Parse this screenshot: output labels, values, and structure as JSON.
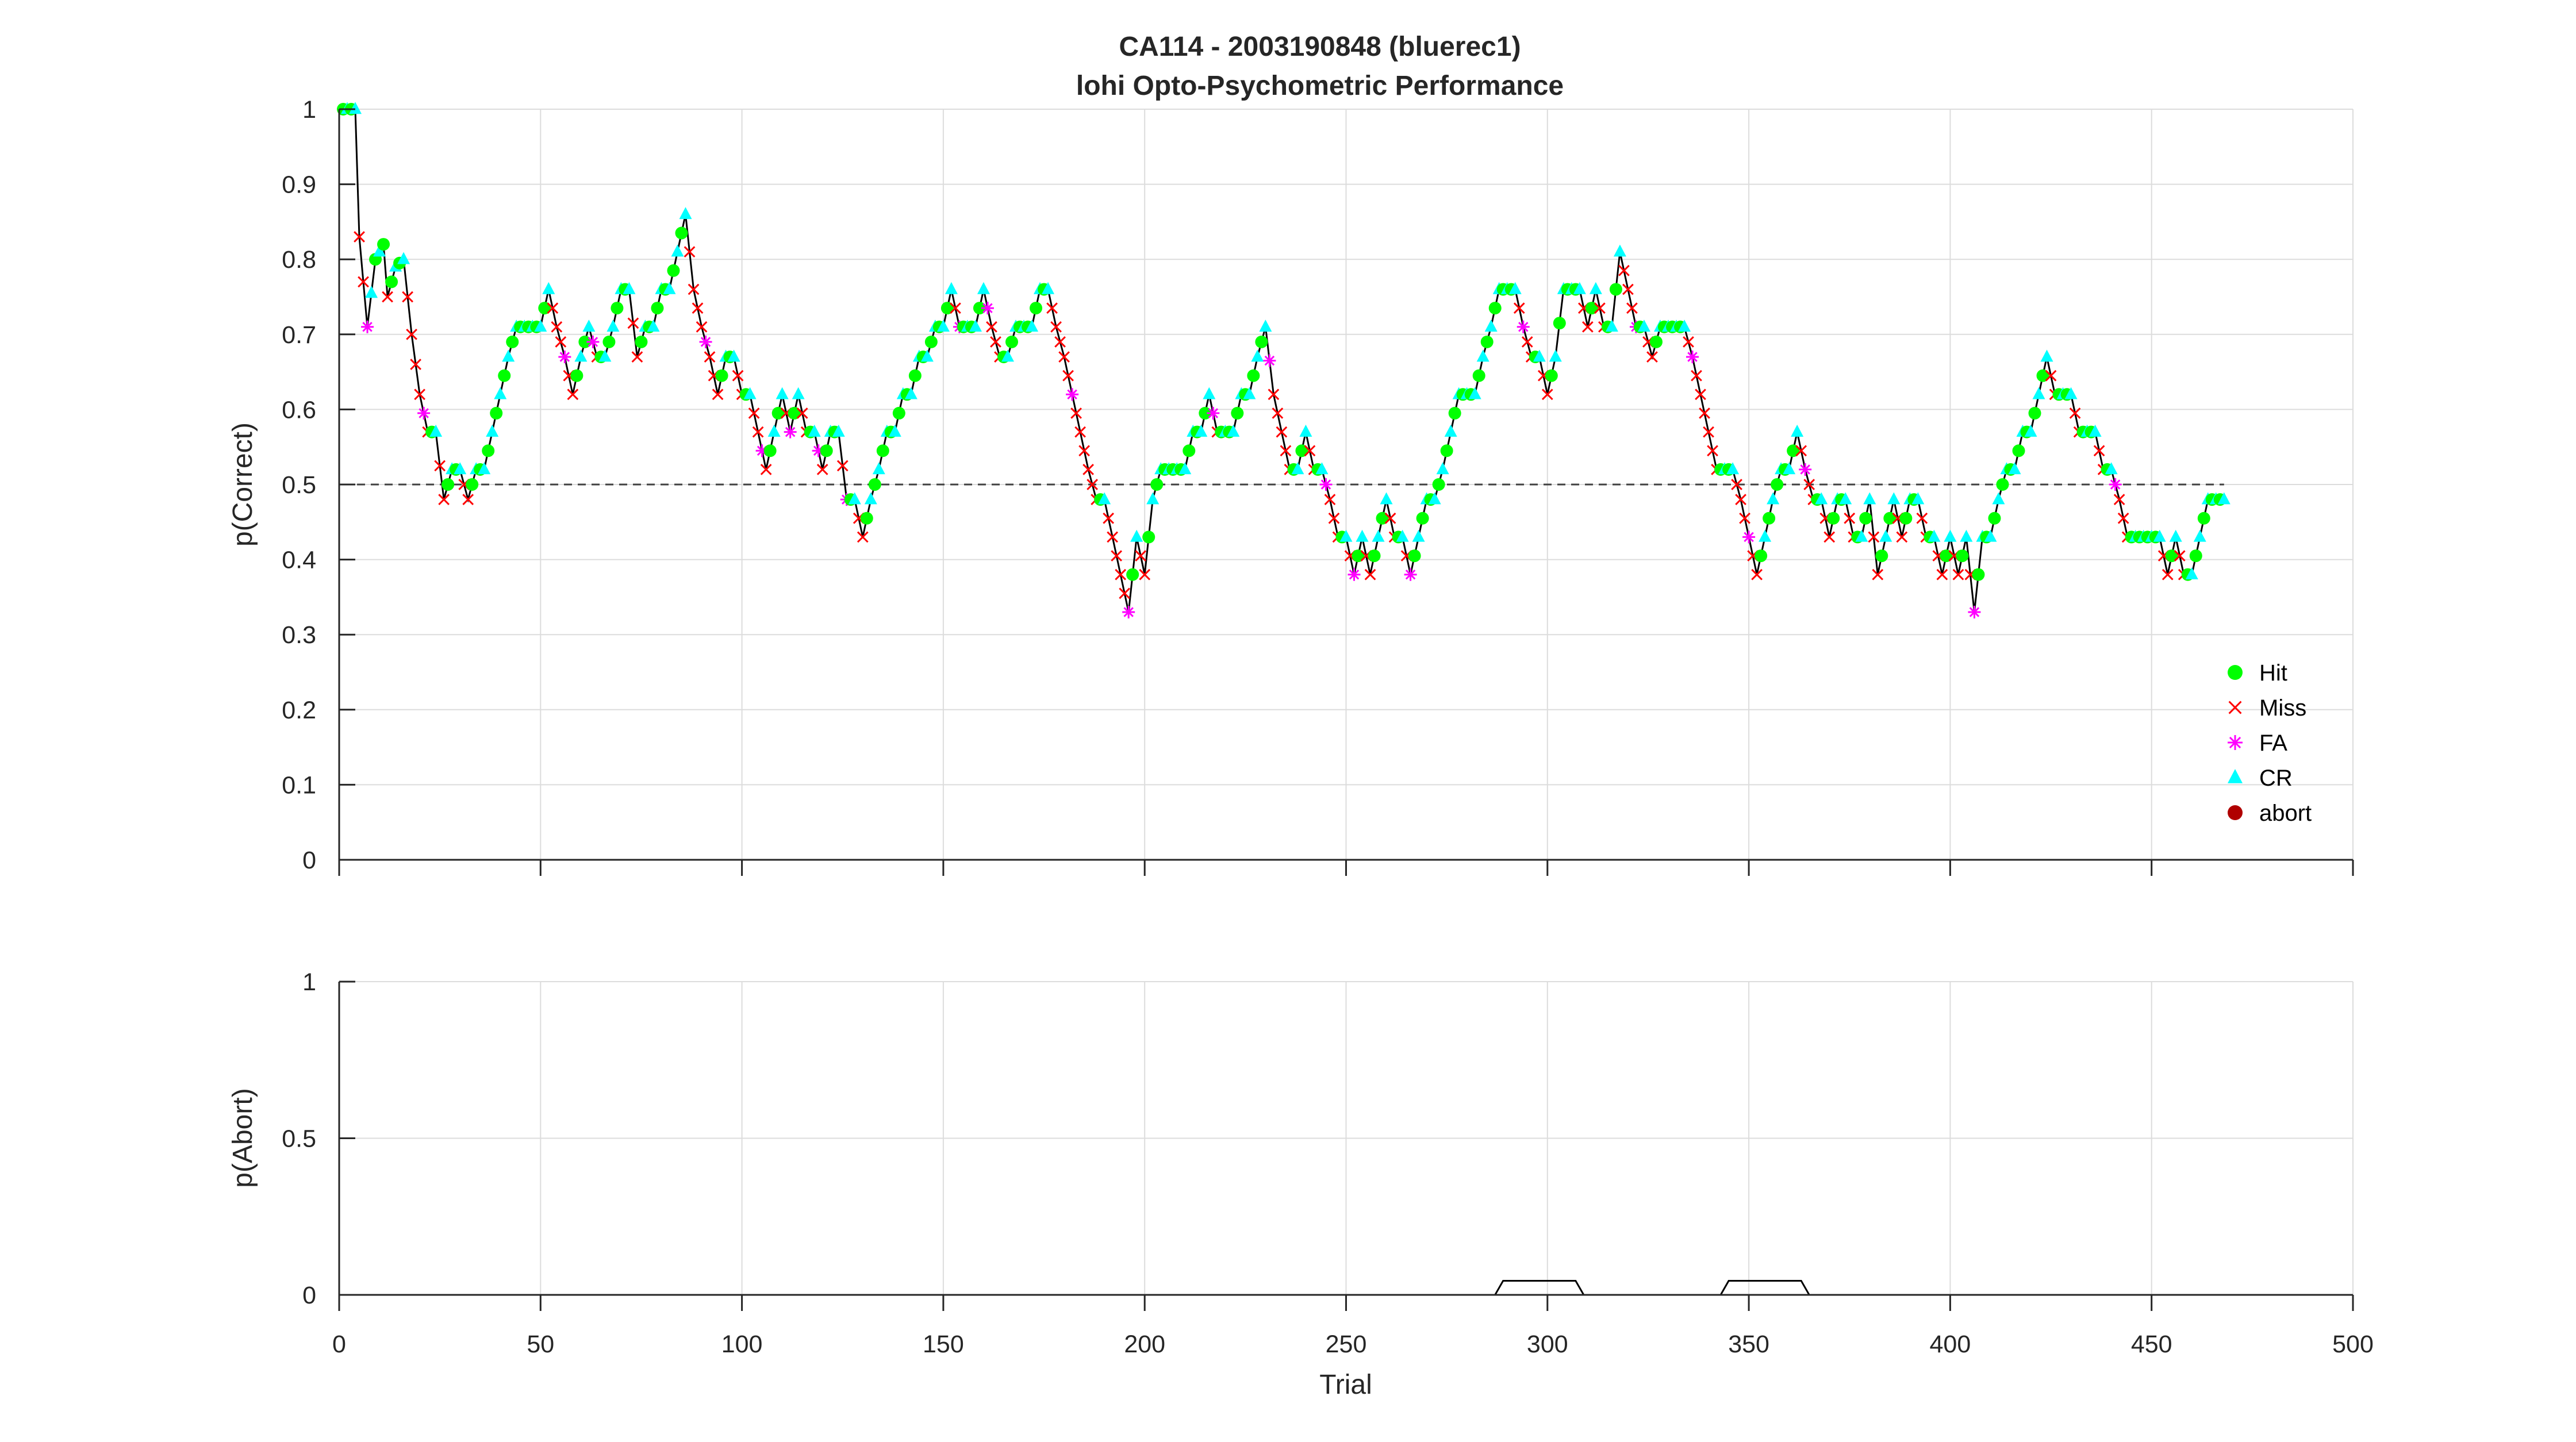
{
  "figure": {
    "title_line1": "CA114 - 2003190848 (bluerec1)",
    "title_line2": "lohi Opto-Psychometric Performance"
  },
  "colors": {
    "hit": "#00ff00",
    "miss": "#ff0000",
    "fa": "#ff00ff",
    "cr": "#00ffff",
    "abort": "#b00000",
    "line": "#000000",
    "grid": "#dcdcdc"
  },
  "chart_data": [
    {
      "type": "line",
      "ylabel": "p(Correct)",
      "xlim": [
        0,
        500
      ],
      "ylim": [
        0,
        1
      ],
      "xticks": [
        0,
        50,
        100,
        150,
        200,
        250,
        300,
        350,
        400,
        450,
        500
      ],
      "yticks": [
        "0",
        "0.1",
        "0.2",
        "0.3",
        "0.4",
        "0.5",
        "0.6",
        "0.7",
        "0.8",
        "0.9",
        "1"
      ],
      "chance_level": 0.5,
      "grid": true,
      "legend_position": "bottom-right",
      "legend": [
        {
          "name": "Hit",
          "marker": "dot",
          "color": "#00ff00"
        },
        {
          "name": "Miss",
          "marker": "x",
          "color": "#ff0000"
        },
        {
          "name": "FA",
          "marker": "star",
          "color": "#ff00ff"
        },
        {
          "name": "CR",
          "marker": "triangle",
          "color": "#00ffff"
        },
        {
          "name": "abort",
          "marker": "dot",
          "color": "#b00000"
        }
      ],
      "keypoints": [
        [
          1,
          1.0
        ],
        [
          4,
          1.0
        ],
        [
          5,
          0.83
        ],
        [
          7,
          0.71
        ],
        [
          9,
          0.8
        ],
        [
          11,
          0.82
        ],
        [
          12,
          0.75
        ],
        [
          14,
          0.79
        ],
        [
          16,
          0.8
        ],
        [
          18,
          0.7
        ],
        [
          20,
          0.62
        ],
        [
          22,
          0.57
        ],
        [
          24,
          0.57
        ],
        [
          26,
          0.48
        ],
        [
          28,
          0.52
        ],
        [
          30,
          0.52
        ],
        [
          32,
          0.48
        ],
        [
          34,
          0.52
        ],
        [
          36,
          0.52
        ],
        [
          38,
          0.57
        ],
        [
          40,
          0.62
        ],
        [
          42,
          0.67
        ],
        [
          44,
          0.71
        ],
        [
          46,
          0.71
        ],
        [
          48,
          0.71
        ],
        [
          50,
          0.71
        ],
        [
          52,
          0.76
        ],
        [
          54,
          0.71
        ],
        [
          56,
          0.67
        ],
        [
          58,
          0.62
        ],
        [
          60,
          0.67
        ],
        [
          62,
          0.71
        ],
        [
          64,
          0.67
        ],
        [
          66,
          0.67
        ],
        [
          68,
          0.71
        ],
        [
          70,
          0.76
        ],
        [
          72,
          0.76
        ],
        [
          74,
          0.67
        ],
        [
          76,
          0.71
        ],
        [
          78,
          0.71
        ],
        [
          80,
          0.76
        ],
        [
          82,
          0.76
        ],
        [
          84,
          0.81
        ],
        [
          86,
          0.86
        ],
        [
          88,
          0.76
        ],
        [
          90,
          0.71
        ],
        [
          92,
          0.67
        ],
        [
          94,
          0.62
        ],
        [
          96,
          0.67
        ],
        [
          98,
          0.67
        ],
        [
          100,
          0.62
        ],
        [
          102,
          0.62
        ],
        [
          104,
          0.57
        ],
        [
          106,
          0.52
        ],
        [
          108,
          0.57
        ],
        [
          110,
          0.62
        ],
        [
          112,
          0.57
        ],
        [
          114,
          0.62
        ],
        [
          116,
          0.57
        ],
        [
          118,
          0.57
        ],
        [
          120,
          0.52
        ],
        [
          122,
          0.57
        ],
        [
          124,
          0.57
        ],
        [
          126,
          0.48
        ],
        [
          128,
          0.48
        ],
        [
          130,
          0.43
        ],
        [
          132,
          0.48
        ],
        [
          134,
          0.52
        ],
        [
          136,
          0.57
        ],
        [
          138,
          0.57
        ],
        [
          140,
          0.62
        ],
        [
          142,
          0.62
        ],
        [
          144,
          0.67
        ],
        [
          146,
          0.67
        ],
        [
          148,
          0.71
        ],
        [
          150,
          0.71
        ],
        [
          152,
          0.76
        ],
        [
          154,
          0.71
        ],
        [
          156,
          0.71
        ],
        [
          158,
          0.71
        ],
        [
          160,
          0.76
        ],
        [
          162,
          0.71
        ],
        [
          164,
          0.67
        ],
        [
          166,
          0.67
        ],
        [
          168,
          0.71
        ],
        [
          170,
          0.71
        ],
        [
          172,
          0.71
        ],
        [
          174,
          0.76
        ],
        [
          176,
          0.76
        ],
        [
          178,
          0.71
        ],
        [
          180,
          0.67
        ],
        [
          182,
          0.62
        ],
        [
          184,
          0.57
        ],
        [
          186,
          0.52
        ],
        [
          188,
          0.48
        ],
        [
          190,
          0.48
        ],
        [
          192,
          0.43
        ],
        [
          194,
          0.38
        ],
        [
          196,
          0.33
        ],
        [
          198,
          0.43
        ],
        [
          200,
          0.38
        ],
        [
          202,
          0.48
        ],
        [
          204,
          0.52
        ],
        [
          206,
          0.52
        ],
        [
          208,
          0.52
        ],
        [
          210,
          0.52
        ],
        [
          212,
          0.57
        ],
        [
          214,
          0.57
        ],
        [
          216,
          0.62
        ],
        [
          218,
          0.57
        ],
        [
          220,
          0.57
        ],
        [
          222,
          0.57
        ],
        [
          224,
          0.62
        ],
        [
          226,
          0.62
        ],
        [
          228,
          0.67
        ],
        [
          230,
          0.71
        ],
        [
          232,
          0.62
        ],
        [
          234,
          0.57
        ],
        [
          236,
          0.52
        ],
        [
          238,
          0.52
        ],
        [
          240,
          0.57
        ],
        [
          242,
          0.52
        ],
        [
          244,
          0.52
        ],
        [
          246,
          0.48
        ],
        [
          248,
          0.43
        ],
        [
          250,
          0.43
        ],
        [
          252,
          0.38
        ],
        [
          254,
          0.43
        ],
        [
          256,
          0.38
        ],
        [
          258,
          0.43
        ],
        [
          260,
          0.48
        ],
        [
          262,
          0.43
        ],
        [
          264,
          0.43
        ],
        [
          266,
          0.38
        ],
        [
          268,
          0.43
        ],
        [
          270,
          0.48
        ],
        [
          272,
          0.48
        ],
        [
          274,
          0.52
        ],
        [
          276,
          0.57
        ],
        [
          278,
          0.62
        ],
        [
          280,
          0.62
        ],
        [
          282,
          0.62
        ],
        [
          284,
          0.67
        ],
        [
          286,
          0.71
        ],
        [
          288,
          0.76
        ],
        [
          290,
          0.76
        ],
        [
          292,
          0.76
        ],
        [
          294,
          0.71
        ],
        [
          296,
          0.67
        ],
        [
          298,
          0.67
        ],
        [
          300,
          0.62
        ],
        [
          302,
          0.67
        ],
        [
          304,
          0.76
        ],
        [
          306,
          0.76
        ],
        [
          308,
          0.76
        ],
        [
          310,
          0.71
        ],
        [
          312,
          0.76
        ],
        [
          314,
          0.71
        ],
        [
          316,
          0.71
        ],
        [
          318,
          0.81
        ],
        [
          320,
          0.76
        ],
        [
          322,
          0.71
        ],
        [
          324,
          0.71
        ],
        [
          326,
          0.67
        ],
        [
          328,
          0.71
        ],
        [
          330,
          0.71
        ],
        [
          332,
          0.71
        ],
        [
          334,
          0.71
        ],
        [
          336,
          0.67
        ],
        [
          338,
          0.62
        ],
        [
          340,
          0.57
        ],
        [
          342,
          0.52
        ],
        [
          344,
          0.52
        ],
        [
          346,
          0.52
        ],
        [
          348,
          0.48
        ],
        [
          350,
          0.43
        ],
        [
          352,
          0.38
        ],
        [
          354,
          0.43
        ],
        [
          356,
          0.48
        ],
        [
          358,
          0.52
        ],
        [
          360,
          0.52
        ],
        [
          362,
          0.57
        ],
        [
          364,
          0.52
        ],
        [
          366,
          0.48
        ],
        [
          368,
          0.48
        ],
        [
          370,
          0.43
        ],
        [
          372,
          0.48
        ],
        [
          374,
          0.48
        ],
        [
          376,
          0.43
        ],
        [
          378,
          0.43
        ],
        [
          380,
          0.48
        ],
        [
          382,
          0.38
        ],
        [
          384,
          0.43
        ],
        [
          386,
          0.48
        ],
        [
          388,
          0.43
        ],
        [
          390,
          0.48
        ],
        [
          392,
          0.48
        ],
        [
          394,
          0.43
        ],
        [
          396,
          0.43
        ],
        [
          398,
          0.38
        ],
        [
          400,
          0.43
        ],
        [
          402,
          0.38
        ],
        [
          404,
          0.43
        ],
        [
          406,
          0.33
        ],
        [
          408,
          0.43
        ],
        [
          410,
          0.43
        ],
        [
          412,
          0.48
        ],
        [
          414,
          0.52
        ],
        [
          416,
          0.52
        ],
        [
          418,
          0.57
        ],
        [
          420,
          0.57
        ],
        [
          422,
          0.62
        ],
        [
          424,
          0.67
        ],
        [
          426,
          0.62
        ],
        [
          428,
          0.62
        ],
        [
          430,
          0.62
        ],
        [
          432,
          0.57
        ],
        [
          434,
          0.57
        ],
        [
          436,
          0.57
        ],
        [
          438,
          0.52
        ],
        [
          440,
          0.52
        ],
        [
          442,
          0.48
        ],
        [
          444,
          0.43
        ],
        [
          446,
          0.43
        ],
        [
          448,
          0.43
        ],
        [
          450,
          0.43
        ],
        [
          452,
          0.43
        ],
        [
          454,
          0.38
        ],
        [
          456,
          0.43
        ],
        [
          458,
          0.38
        ],
        [
          460,
          0.38
        ],
        [
          462,
          0.43
        ],
        [
          464,
          0.48
        ],
        [
          466,
          0.48
        ],
        [
          468,
          0.48
        ]
      ]
    },
    {
      "type": "line",
      "xlabel": "Trial",
      "ylabel": "p(Abort)",
      "xlim": [
        0,
        500
      ],
      "ylim": [
        0,
        1
      ],
      "xticks": [
        0,
        50,
        100,
        150,
        200,
        250,
        300,
        350,
        400,
        450,
        500
      ],
      "yticks": [
        "0",
        "0.5",
        "1"
      ],
      "grid": true,
      "x": [
        1,
        287,
        289,
        307,
        309,
        343,
        345,
        363,
        365,
        468
      ],
      "y": [
        0,
        0,
        0.045,
        0.045,
        0,
        0,
        0.045,
        0.045,
        0,
        0
      ]
    }
  ]
}
